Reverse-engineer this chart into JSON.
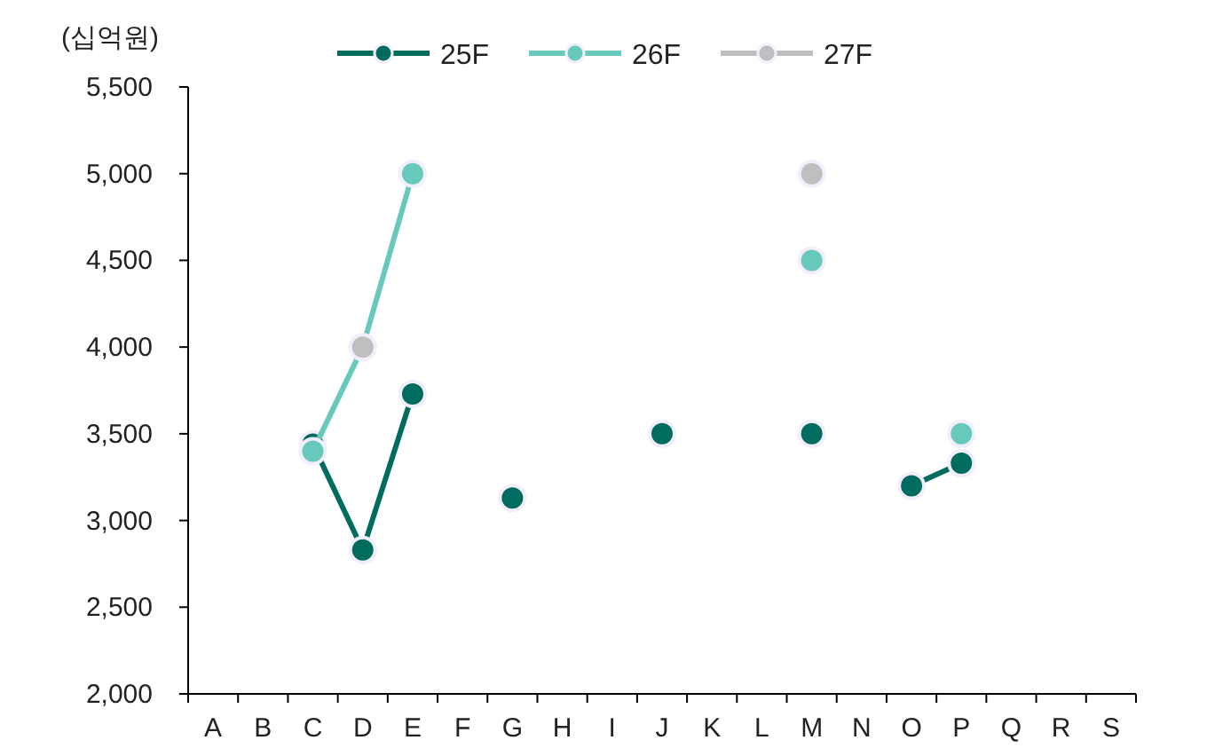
{
  "chart_data": {
    "type": "line",
    "ylabel": "(십억원)",
    "categories": [
      "A",
      "B",
      "C",
      "D",
      "E",
      "F",
      "G",
      "H",
      "I",
      "J",
      "K",
      "L",
      "M",
      "N",
      "O",
      "P",
      "Q",
      "R",
      "S"
    ],
    "series": [
      {
        "name": "25F",
        "color": "#006b5f",
        "values": [
          null,
          null,
          3440,
          2830,
          3730,
          null,
          3130,
          null,
          null,
          3500,
          null,
          null,
          3500,
          null,
          3200,
          3330,
          null,
          null,
          null
        ]
      },
      {
        "name": "26F",
        "color": "#66c9bb",
        "values": [
          null,
          null,
          3400,
          4000,
          5000,
          null,
          null,
          null,
          null,
          null,
          null,
          null,
          4500,
          null,
          null,
          3500,
          null,
          null,
          null
        ]
      },
      {
        "name": "27F",
        "type": "scatter",
        "color": "#bfbfbf",
        "values": [
          null,
          null,
          null,
          4000,
          null,
          null,
          null,
          null,
          null,
          null,
          null,
          null,
          5000,
          null,
          null,
          null,
          null,
          null,
          null
        ]
      }
    ],
    "ylim": [
      2000,
      5500
    ],
    "yticks": [
      {
        "value": 2000,
        "label": "2,000"
      },
      {
        "value": 2500,
        "label": "2,500"
      },
      {
        "value": 3000,
        "label": "3,000"
      },
      {
        "value": 3500,
        "label": "3,500"
      },
      {
        "value": 4000,
        "label": "4,000"
      },
      {
        "value": 4500,
        "label": "4,500"
      },
      {
        "value": 5000,
        "label": "5,000"
      },
      {
        "value": 5500,
        "label": "5,500"
      }
    ],
    "legend": "top",
    "marker": "circle",
    "line_style": "solid"
  }
}
